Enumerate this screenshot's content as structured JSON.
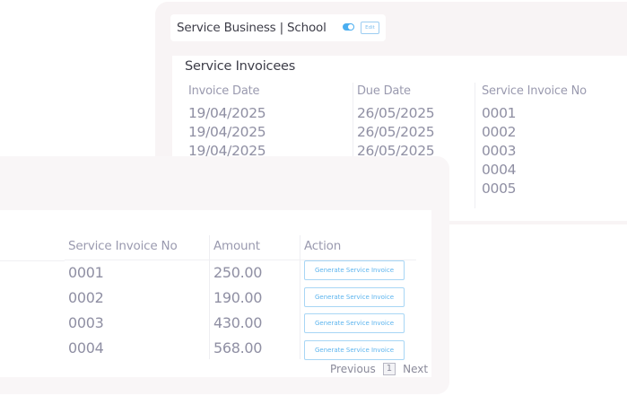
{
  "back_panel": {
    "business_title": "Service Business | School",
    "toggle_on": true,
    "edit_label": "Edit",
    "heading": "Service Invoicees",
    "columns": [
      "Invoice Date",
      "Due Date",
      "Service Invoice No"
    ],
    "invoice_dates": [
      "19/04/2025",
      "19/04/2025",
      "19/04/2025"
    ],
    "due_dates": [
      "26/05/2025",
      "26/05/2025",
      "26/05/2025"
    ],
    "invoice_nos": [
      "0001",
      "0002",
      "0003",
      "0004",
      "0005"
    ]
  },
  "front_panel": {
    "columns": [
      "Service Invoice No",
      "Amount",
      "Action"
    ],
    "rows": [
      {
        "invoice_no": "0001",
        "amount": "250.00",
        "action": "Generate Service Invoice"
      },
      {
        "invoice_no": "0002",
        "amount": "190.00",
        "action": "Generate Service Invoice"
      },
      {
        "invoice_no": "0003",
        "amount": "430.00",
        "action": "Generate Service Invoice"
      },
      {
        "invoice_no": "0004",
        "amount": "568.00",
        "action": "Generate Service Invoice"
      }
    ],
    "pagination": {
      "previous": "Previous",
      "page": "1",
      "next": "Next"
    }
  },
  "colors": {
    "accent": "#4aaef0",
    "card_bg": "#f8f4f5",
    "text": "#8f8fa3"
  }
}
